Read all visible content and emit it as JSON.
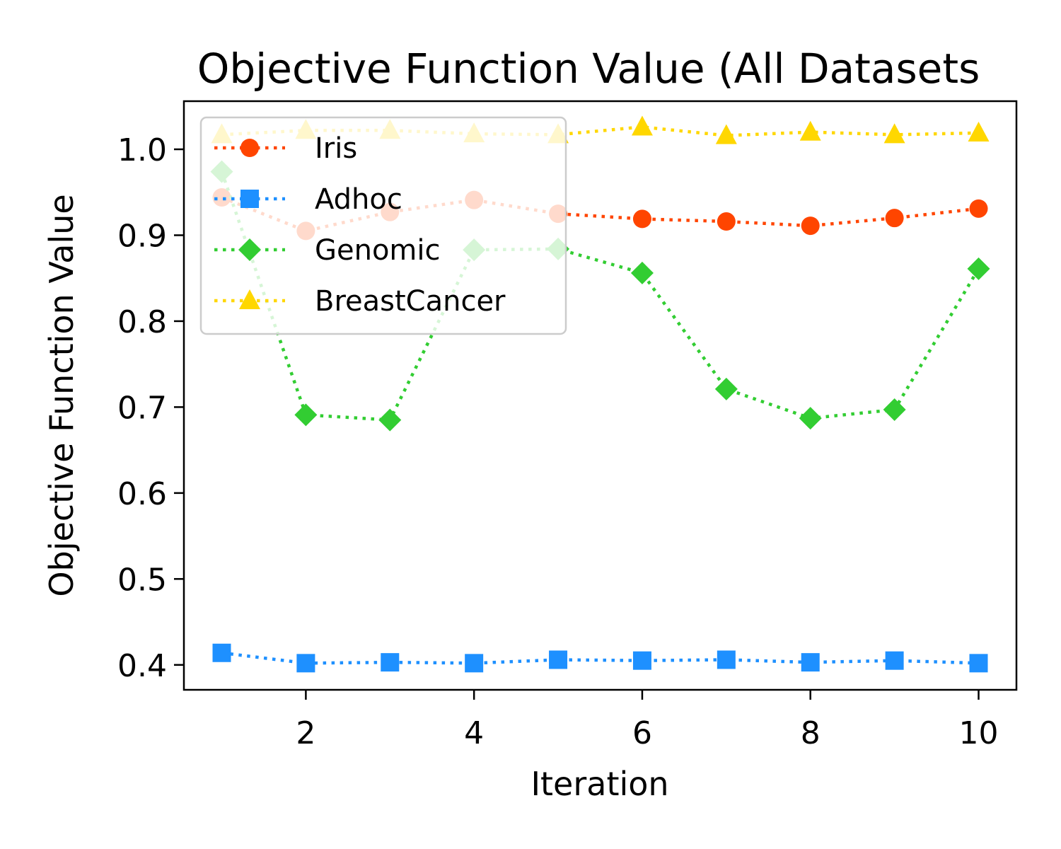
{
  "chart_data": {
    "type": "line",
    "title": "Objective Function Value (All Datasets",
    "xlabel": "Iteration",
    "ylabel": "Objective Function Value",
    "xlim": [
      0.55,
      10.45
    ],
    "ylim": [
      0.371,
      1.056
    ],
    "xticks": [
      2,
      4,
      6,
      8,
      10
    ],
    "xtick_labels": [
      "2",
      "4",
      "6",
      "8",
      "10"
    ],
    "yticks": [
      0.4,
      0.5,
      0.6,
      0.7,
      0.8,
      0.9,
      1.0
    ],
    "ytick_labels": [
      "0.4",
      "0.5",
      "0.6",
      "0.7",
      "0.8",
      "0.9",
      "1.0"
    ],
    "grid": false,
    "legend_position": "upper-left",
    "x": [
      1,
      2,
      3,
      4,
      5,
      6,
      7,
      8,
      9,
      10
    ],
    "series": [
      {
        "name": "Iris",
        "color": "#ff4500",
        "marker": "circle",
        "values": [
          0.944,
          0.905,
          0.927,
          0.941,
          0.925,
          0.919,
          0.916,
          0.911,
          0.92,
          0.931
        ]
      },
      {
        "name": "Adhoc",
        "color": "#1e90ff",
        "marker": "square",
        "values": [
          0.414,
          0.402,
          0.403,
          0.402,
          0.406,
          0.405,
          0.406,
          0.403,
          0.405,
          0.402
        ]
      },
      {
        "name": "Genomic",
        "color": "#32cd32",
        "marker": "diamond",
        "values": [
          0.974,
          0.691,
          0.685,
          0.883,
          0.884,
          0.856,
          0.721,
          0.687,
          0.697,
          0.861
        ]
      },
      {
        "name": "BreastCancer",
        "color": "#ffd700",
        "marker": "triangle",
        "values": [
          1.017,
          1.022,
          1.022,
          1.018,
          1.017,
          1.026,
          1.016,
          1.02,
          1.017,
          1.019
        ]
      }
    ]
  }
}
